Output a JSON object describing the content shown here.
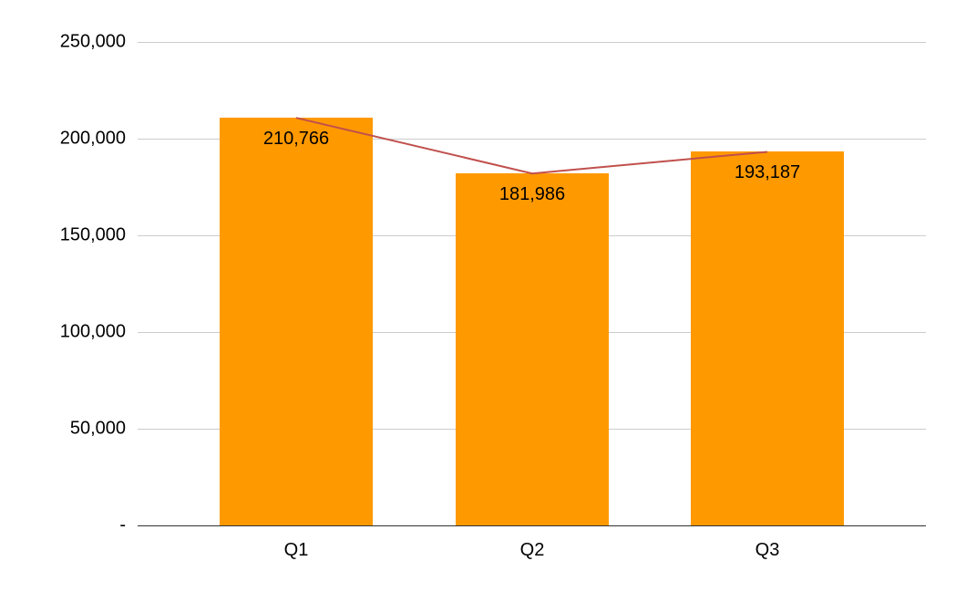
{
  "chart_data": {
    "type": "bar",
    "title": "",
    "xlabel": "",
    "ylabel": "",
    "categories": [
      "Q1",
      "Q2",
      "Q3"
    ],
    "series": [
      {
        "name": "Bars",
        "type": "bar",
        "color": "#ff9900",
        "values": [
          210766,
          181986,
          193187
        ]
      },
      {
        "name": "Line",
        "type": "line",
        "color": "#c0504d",
        "values": [
          210766,
          181986,
          193187
        ]
      }
    ],
    "data_labels": [
      "210,766",
      "181,986",
      "193,187"
    ],
    "ylim": [
      0,
      250000
    ],
    "yticks": [
      0,
      50000,
      100000,
      150000,
      200000,
      250000
    ],
    "ytick_labels": [
      "-",
      "50,000",
      "100,000",
      "150,000",
      "200,000",
      "250,000"
    ],
    "grid": true,
    "legend": "none"
  }
}
